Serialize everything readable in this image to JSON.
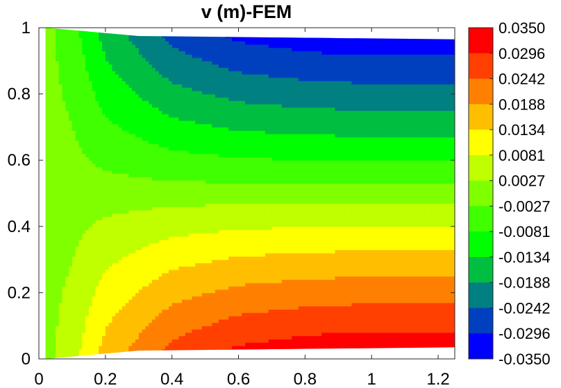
{
  "chart_data": {
    "type": "contour",
    "title": "v (m)-FEM",
    "xlabel": "",
    "ylabel": "",
    "xlim": [
      0,
      1.25
    ],
    "ylim": [
      0,
      1
    ],
    "x_ticks": [
      "0",
      "0.2",
      "0.4",
      "0.6",
      "0.8",
      "1",
      "1.2"
    ],
    "y_ticks": [
      "0",
      "0.2",
      "0.4",
      "0.6",
      "0.8",
      "1"
    ],
    "grid": false,
    "colorbar": {
      "position": "right",
      "levels": [
        "0.0350",
        "0.0296",
        "0.0242",
        "0.0188",
        "0.0134",
        "0.0081",
        "0.0027",
        "-0.0027",
        "-0.0081",
        "-0.0134",
        "-0.0188",
        "-0.0242",
        "-0.0296",
        "-0.0350"
      ],
      "colors": [
        "#ff0000",
        "#ff4000",
        "#ff8000",
        "#ffbf00",
        "#ffff00",
        "#bfff00",
        "#80ff00",
        "#40ff00",
        "#00ff00",
        "#00bf40",
        "#008080",
        "#0040bf",
        "#0000ff"
      ]
    },
    "field": {
      "description_domain": "0 <= x <= 1.25, 0 <= y <= 1",
      "boundary_band": [
        {
          "x": 0.0,
          "v": 0.0
        },
        {
          "x": 0.1,
          "v": 0.006
        },
        {
          "x": 0.2,
          "v": 0.016
        },
        {
          "x": 0.4,
          "v": 0.027
        },
        {
          "x": 0.6,
          "v": 0.032
        },
        {
          "x": 0.8,
          "v": 0.034
        },
        {
          "x": 1.0,
          "v": 0.035
        },
        {
          "x": 1.25,
          "v": 0.035
        }
      ]
    }
  }
}
